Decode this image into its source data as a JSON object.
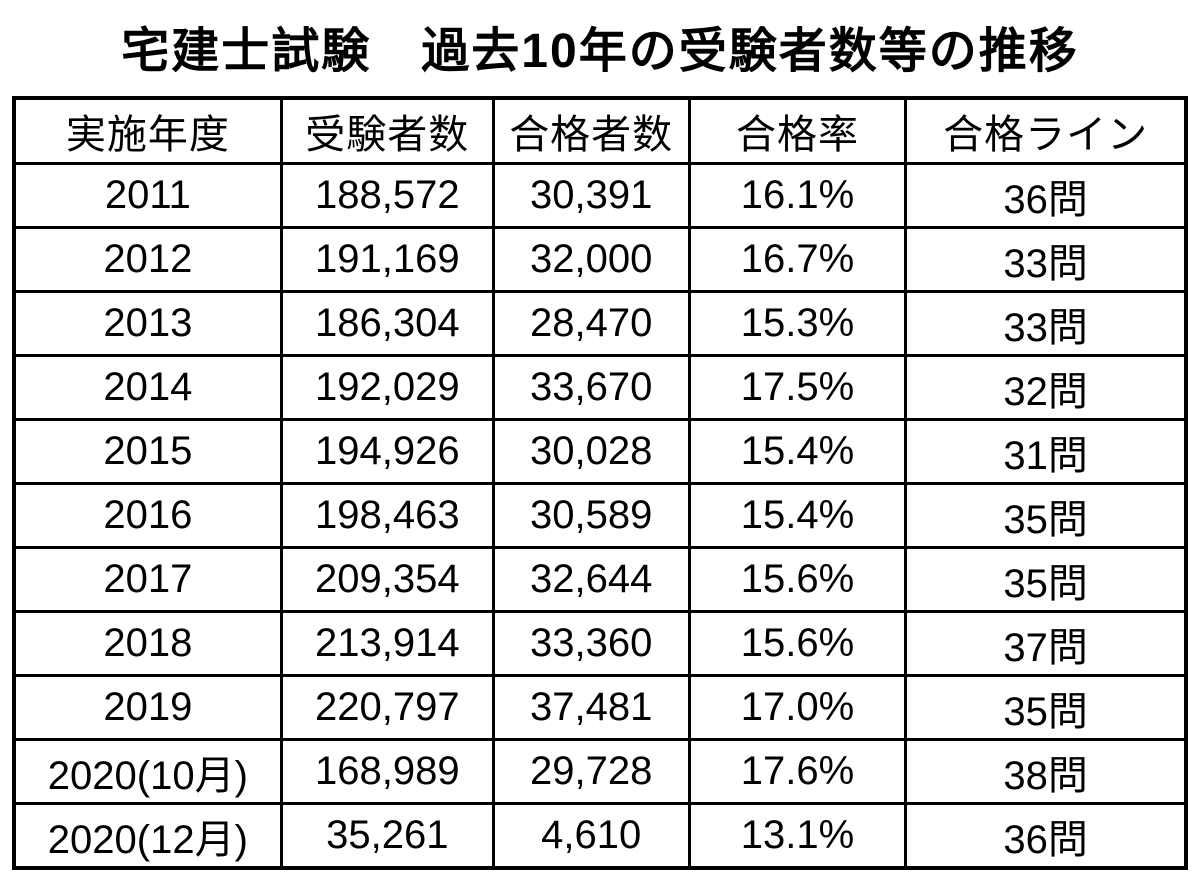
{
  "title": "宅建士試験　過去10年の受験者数等の推移",
  "colors": {
    "background": "#ffffff",
    "text": "#000000",
    "border": "#000000"
  },
  "chart_data": {
    "type": "table",
    "title": "宅建士試験　過去10年の受験者数等の推移",
    "columns": [
      "実施年度",
      "受験者数",
      "合格者数",
      "合格率",
      "合格ライン"
    ],
    "rows": [
      [
        "2011",
        "188,572",
        "30,391",
        "16.1%",
        "36問"
      ],
      [
        "2012",
        "191,169",
        "32,000",
        "16.7%",
        "33問"
      ],
      [
        "2013",
        "186,304",
        "28,470",
        "15.3%",
        "33問"
      ],
      [
        "2014",
        "192,029",
        "33,670",
        "17.5%",
        "32問"
      ],
      [
        "2015",
        "194,926",
        "30,028",
        "15.4%",
        "31問"
      ],
      [
        "2016",
        "198,463",
        "30,589",
        "15.4%",
        "35問"
      ],
      [
        "2017",
        "209,354",
        "32,644",
        "15.6%",
        "35問"
      ],
      [
        "2018",
        "213,914",
        "33,360",
        "15.6%",
        "37問"
      ],
      [
        "2019",
        "220,797",
        "37,481",
        "17.0%",
        "35問"
      ],
      [
        "2020(10月)",
        "168,989",
        "29,728",
        "17.6%",
        "38問"
      ],
      [
        "2020(12月)",
        "35,261",
        "4,610",
        "13.1%",
        "36問"
      ]
    ]
  }
}
